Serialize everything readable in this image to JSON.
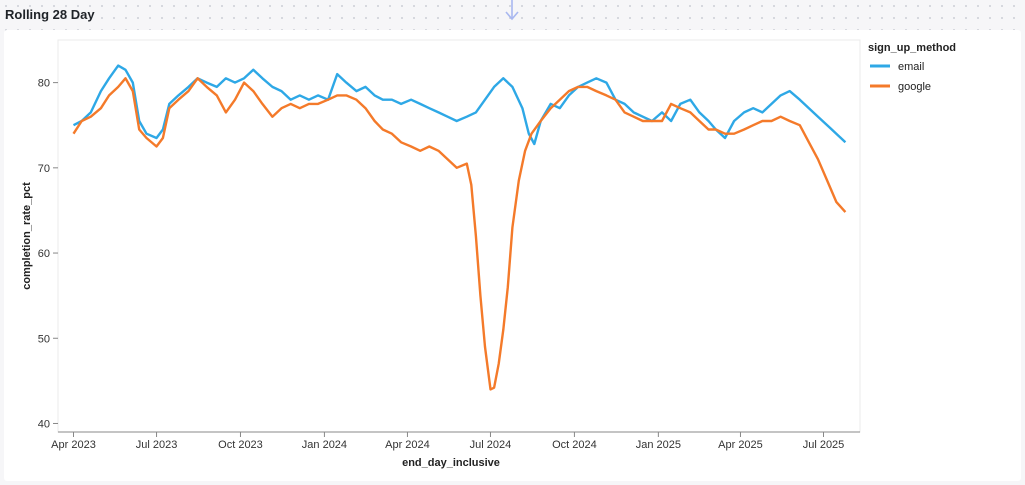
{
  "panel": {
    "title": "Rolling 28 Day"
  },
  "icons": {
    "drop_arrow": "arrow-down-icon"
  },
  "colors": {
    "email": "#2ea8e6",
    "google": "#f47a2a",
    "grid": "#ebebeb",
    "axis": "#888888"
  },
  "chart_data": {
    "type": "line",
    "xlabel": "end_day_inclusive",
    "ylabel": "completion_rate_pct",
    "ylim": [
      39,
      85
    ],
    "yticks": [
      40,
      50,
      60,
      70,
      80
    ],
    "xlim": [
      "2023-03-15",
      "2025-08-10"
    ],
    "xticks": [
      {
        "label": "Apr 2023",
        "date": "2023-04-01"
      },
      {
        "label": "Jul 2023",
        "date": "2023-07-01"
      },
      {
        "label": "Oct 2023",
        "date": "2023-10-01"
      },
      {
        "label": "Jan 2024",
        "date": "2024-01-01"
      },
      {
        "label": "Apr 2024",
        "date": "2024-04-01"
      },
      {
        "label": "Jul 2024",
        "date": "2024-07-01"
      },
      {
        "label": "Oct 2024",
        "date": "2024-10-01"
      },
      {
        "label": "Jan 2025",
        "date": "2025-01-01"
      },
      {
        "label": "Apr 2025",
        "date": "2025-04-01"
      },
      {
        "label": "Jul 2025",
        "date": "2025-07-01"
      }
    ],
    "grid": false,
    "legend": {
      "title": "sign_up_method",
      "placement": "right"
    },
    "series": [
      {
        "name": "email",
        "points": [
          [
            "2023-04-01",
            75.0
          ],
          [
            "2023-04-10",
            75.5
          ],
          [
            "2023-04-20",
            76.5
          ],
          [
            "2023-05-01",
            79.0
          ],
          [
            "2023-05-10",
            80.5
          ],
          [
            "2023-05-20",
            82.0
          ],
          [
            "2023-05-28",
            81.5
          ],
          [
            "2023-06-05",
            80.0
          ],
          [
            "2023-06-12",
            75.5
          ],
          [
            "2023-06-20",
            74.0
          ],
          [
            "2023-07-01",
            73.5
          ],
          [
            "2023-07-08",
            74.5
          ],
          [
            "2023-07-15",
            77.5
          ],
          [
            "2023-07-25",
            78.5
          ],
          [
            "2023-08-05",
            79.5
          ],
          [
            "2023-08-15",
            80.5
          ],
          [
            "2023-08-25",
            80.0
          ],
          [
            "2023-09-05",
            79.5
          ],
          [
            "2023-09-15",
            80.5
          ],
          [
            "2023-09-25",
            80.0
          ],
          [
            "2023-10-05",
            80.5
          ],
          [
            "2023-10-15",
            81.5
          ],
          [
            "2023-10-25",
            80.5
          ],
          [
            "2023-11-05",
            79.5
          ],
          [
            "2023-11-15",
            79.0
          ],
          [
            "2023-11-25",
            78.0
          ],
          [
            "2023-12-05",
            78.5
          ],
          [
            "2023-12-15",
            78.0
          ],
          [
            "2023-12-25",
            78.5
          ],
          [
            "2024-01-05",
            78.0
          ],
          [
            "2024-01-15",
            81.0
          ],
          [
            "2024-01-25",
            80.0
          ],
          [
            "2024-02-05",
            79.0
          ],
          [
            "2024-02-15",
            79.5
          ],
          [
            "2024-02-25",
            78.5
          ],
          [
            "2024-03-05",
            78.0
          ],
          [
            "2024-03-15",
            78.0
          ],
          [
            "2024-03-25",
            77.5
          ],
          [
            "2024-04-05",
            78.0
          ],
          [
            "2024-04-15",
            77.5
          ],
          [
            "2024-04-25",
            77.0
          ],
          [
            "2024-05-05",
            76.5
          ],
          [
            "2024-05-15",
            76.0
          ],
          [
            "2024-05-25",
            75.5
          ],
          [
            "2024-06-05",
            76.0
          ],
          [
            "2024-06-15",
            76.5
          ],
          [
            "2024-06-25",
            78.0
          ],
          [
            "2024-07-05",
            79.5
          ],
          [
            "2024-07-15",
            80.5
          ],
          [
            "2024-07-25",
            79.5
          ],
          [
            "2024-08-05",
            77.0
          ],
          [
            "2024-08-12",
            74.0
          ],
          [
            "2024-08-18",
            72.8
          ],
          [
            "2024-08-25",
            75.5
          ],
          [
            "2024-09-05",
            77.5
          ],
          [
            "2024-09-15",
            77.0
          ],
          [
            "2024-09-25",
            78.5
          ],
          [
            "2024-10-05",
            79.5
          ],
          [
            "2024-10-15",
            80.0
          ],
          [
            "2024-10-25",
            80.5
          ],
          [
            "2024-11-05",
            80.0
          ],
          [
            "2024-11-15",
            78.0
          ],
          [
            "2024-11-25",
            77.5
          ],
          [
            "2024-12-05",
            76.5
          ],
          [
            "2024-12-15",
            76.0
          ],
          [
            "2024-12-25",
            75.5
          ],
          [
            "2025-01-05",
            76.5
          ],
          [
            "2025-01-15",
            75.5
          ],
          [
            "2025-01-25",
            77.5
          ],
          [
            "2025-02-05",
            78.0
          ],
          [
            "2025-02-15",
            76.5
          ],
          [
            "2025-02-25",
            75.5
          ],
          [
            "2025-03-05",
            74.5
          ],
          [
            "2025-03-15",
            73.5
          ],
          [
            "2025-03-25",
            75.5
          ],
          [
            "2025-04-05",
            76.5
          ],
          [
            "2025-04-15",
            77.0
          ],
          [
            "2025-04-25",
            76.5
          ],
          [
            "2025-05-05",
            77.5
          ],
          [
            "2025-05-15",
            78.5
          ],
          [
            "2025-05-25",
            79.0
          ],
          [
            "2025-06-05",
            78.0
          ],
          [
            "2025-06-15",
            77.0
          ],
          [
            "2025-06-25",
            76.0
          ],
          [
            "2025-07-05",
            75.0
          ],
          [
            "2025-07-15",
            74.0
          ],
          [
            "2025-07-25",
            73.0
          ]
        ]
      },
      {
        "name": "google",
        "points": [
          [
            "2023-04-01",
            74.0
          ],
          [
            "2023-04-10",
            75.5
          ],
          [
            "2023-04-20",
            76.0
          ],
          [
            "2023-05-01",
            77.0
          ],
          [
            "2023-05-10",
            78.5
          ],
          [
            "2023-05-20",
            79.5
          ],
          [
            "2023-05-28",
            80.5
          ],
          [
            "2023-06-05",
            79.0
          ],
          [
            "2023-06-12",
            74.5
          ],
          [
            "2023-06-20",
            73.5
          ],
          [
            "2023-07-01",
            72.5
          ],
          [
            "2023-07-08",
            73.5
          ],
          [
            "2023-07-15",
            77.0
          ],
          [
            "2023-07-25",
            78.0
          ],
          [
            "2023-08-05",
            79.0
          ],
          [
            "2023-08-15",
            80.5
          ],
          [
            "2023-08-25",
            79.5
          ],
          [
            "2023-09-05",
            78.5
          ],
          [
            "2023-09-15",
            76.5
          ],
          [
            "2023-09-25",
            78.0
          ],
          [
            "2023-10-05",
            80.0
          ],
          [
            "2023-10-15",
            79.0
          ],
          [
            "2023-10-25",
            77.5
          ],
          [
            "2023-11-05",
            76.0
          ],
          [
            "2023-11-15",
            77.0
          ],
          [
            "2023-11-25",
            77.5
          ],
          [
            "2023-12-05",
            77.0
          ],
          [
            "2023-12-15",
            77.5
          ],
          [
            "2023-12-25",
            77.5
          ],
          [
            "2024-01-05",
            78.0
          ],
          [
            "2024-01-15",
            78.5
          ],
          [
            "2024-01-25",
            78.5
          ],
          [
            "2024-02-05",
            78.0
          ],
          [
            "2024-02-15",
            77.0
          ],
          [
            "2024-02-25",
            75.5
          ],
          [
            "2024-03-05",
            74.5
          ],
          [
            "2024-03-15",
            74.0
          ],
          [
            "2024-03-25",
            73.0
          ],
          [
            "2024-04-05",
            72.5
          ],
          [
            "2024-04-15",
            72.0
          ],
          [
            "2024-04-25",
            72.5
          ],
          [
            "2024-05-05",
            72.0
          ],
          [
            "2024-05-15",
            71.0
          ],
          [
            "2024-05-25",
            70.0
          ],
          [
            "2024-06-05",
            70.5
          ],
          [
            "2024-06-10",
            68.0
          ],
          [
            "2024-06-15",
            62.0
          ],
          [
            "2024-06-20",
            55.0
          ],
          [
            "2024-06-25",
            49.0
          ],
          [
            "2024-07-01",
            44.0
          ],
          [
            "2024-07-05",
            44.2
          ],
          [
            "2024-07-10",
            47.0
          ],
          [
            "2024-07-15",
            51.0
          ],
          [
            "2024-07-20",
            56.0
          ],
          [
            "2024-07-25",
            63.0
          ],
          [
            "2024-08-01",
            68.5
          ],
          [
            "2024-08-08",
            72.0
          ],
          [
            "2024-08-15",
            74.0
          ],
          [
            "2024-08-25",
            75.5
          ],
          [
            "2024-09-05",
            77.0
          ],
          [
            "2024-09-15",
            78.0
          ],
          [
            "2024-09-25",
            79.0
          ],
          [
            "2024-10-05",
            79.5
          ],
          [
            "2024-10-15",
            79.5
          ],
          [
            "2024-10-25",
            79.0
          ],
          [
            "2024-11-05",
            78.5
          ],
          [
            "2024-11-15",
            78.0
          ],
          [
            "2024-11-25",
            76.5
          ],
          [
            "2024-12-05",
            76.0
          ],
          [
            "2024-12-15",
            75.5
          ],
          [
            "2024-12-25",
            75.5
          ],
          [
            "2025-01-05",
            75.5
          ],
          [
            "2025-01-15",
            77.5
          ],
          [
            "2025-01-25",
            77.0
          ],
          [
            "2025-02-05",
            76.5
          ],
          [
            "2025-02-15",
            75.5
          ],
          [
            "2025-02-25",
            74.5
          ],
          [
            "2025-03-05",
            74.5
          ],
          [
            "2025-03-15",
            74.0
          ],
          [
            "2025-03-25",
            74.0
          ],
          [
            "2025-04-05",
            74.5
          ],
          [
            "2025-04-15",
            75.0
          ],
          [
            "2025-04-25",
            75.5
          ],
          [
            "2025-05-05",
            75.5
          ],
          [
            "2025-05-15",
            76.0
          ],
          [
            "2025-05-25",
            75.5
          ],
          [
            "2025-06-05",
            75.0
          ],
          [
            "2025-06-15",
            73.0
          ],
          [
            "2025-06-25",
            71.0
          ],
          [
            "2025-07-05",
            68.5
          ],
          [
            "2025-07-15",
            66.0
          ],
          [
            "2025-07-25",
            64.8
          ]
        ]
      }
    ]
  }
}
